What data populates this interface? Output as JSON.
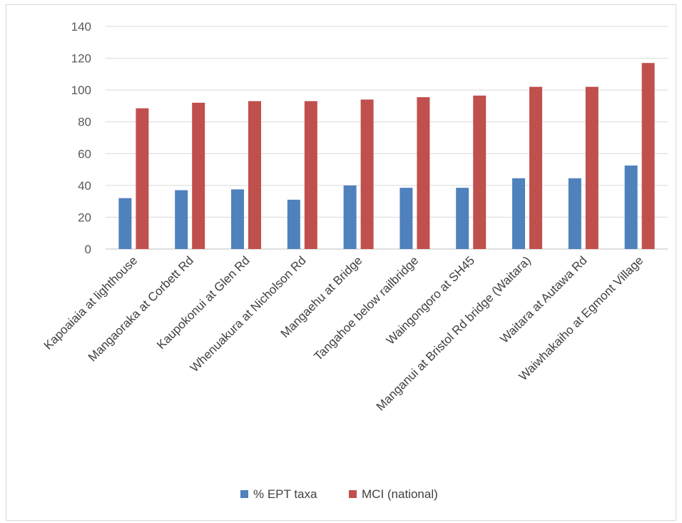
{
  "chart_data": {
    "type": "bar",
    "title": "",
    "xlabel": "",
    "ylabel": "",
    "ylim": [
      0,
      140
    ],
    "yticks": [
      0,
      20,
      40,
      60,
      80,
      100,
      120,
      140
    ],
    "grid": true,
    "legend_position": "bottom",
    "categories": [
      "Kapoaiaia at lighthouse",
      "Mangaoraka at Corbett Rd",
      "Kaupokonui at Glen Rd",
      "Whenuakura at Nicholson Rd",
      "Mangaehu at Bridge",
      "Tangahoe below railbridge",
      "Waingongoro at SH45",
      "Manganui at Bristol Rd bridge (Waitara)",
      "Waitara at Autawa Rd",
      "Waiwhakaiho at Egmont Village"
    ],
    "series": [
      {
        "name": "% EPT taxa",
        "color": "#4f81bd",
        "values": [
          32,
          37,
          37.5,
          31,
          40,
          38.5,
          38.5,
          44.5,
          44.5,
          52.5
        ]
      },
      {
        "name": "MCI (national)",
        "color": "#c0504d",
        "values": [
          88.5,
          92,
          93,
          93,
          94,
          95.5,
          96.5,
          102,
          102,
          117
        ]
      }
    ]
  }
}
